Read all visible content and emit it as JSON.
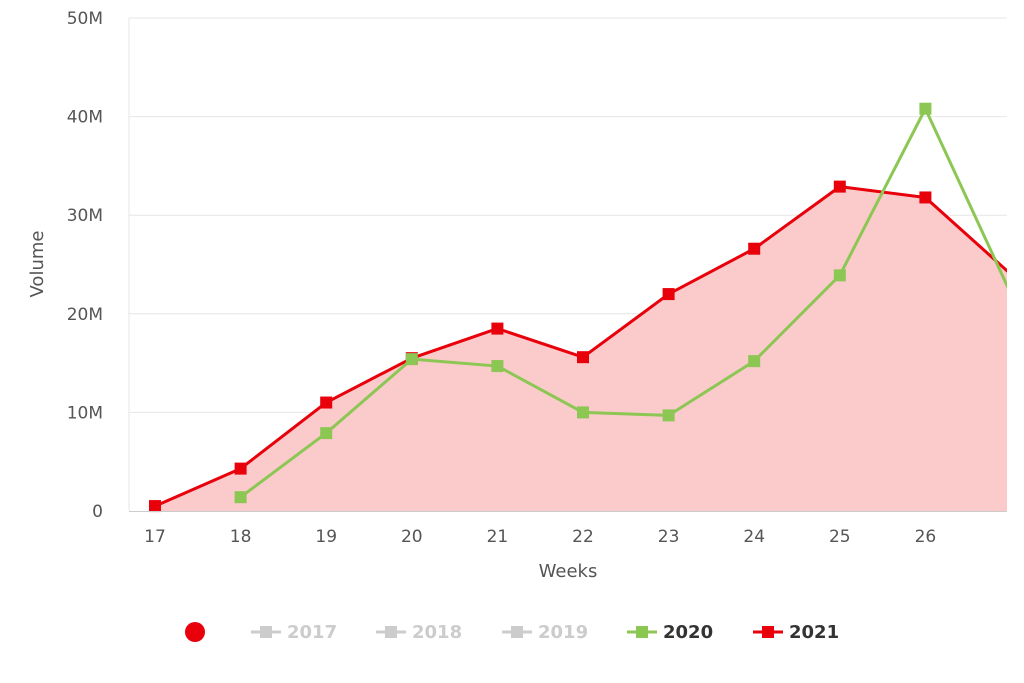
{
  "chart_data": {
    "type": "area",
    "xlabel": "Weeks",
    "ylabel": "Volume",
    "x_categories": [
      "17",
      "18",
      "19",
      "20",
      "21",
      "22",
      "23",
      "24",
      "25",
      "26"
    ],
    "y_ticks": [
      {
        "value": 0,
        "label": "0"
      },
      {
        "value": 10000000,
        "label": "10M"
      },
      {
        "value": 20000000,
        "label": "20M"
      },
      {
        "value": 30000000,
        "label": "30M"
      },
      {
        "value": 40000000,
        "label": "40M"
      },
      {
        "value": 50000000,
        "label": "50M"
      }
    ],
    "ylim": [
      0,
      50000000
    ],
    "grid": true,
    "legend_position": "bottom",
    "series": [
      {
        "name": "2017",
        "visible": false,
        "color": "#cccccc",
        "x": [],
        "y": []
      },
      {
        "name": "2018",
        "visible": false,
        "color": "#cccccc",
        "x": [],
        "y": []
      },
      {
        "name": "2019",
        "visible": false,
        "color": "#cccccc",
        "x": [],
        "y": []
      },
      {
        "name": "2020",
        "visible": true,
        "color": "#8cc653",
        "style": "line",
        "x": [
          18,
          19,
          20,
          21,
          22,
          23,
          24,
          25,
          26,
          27
        ],
        "y": [
          1400000,
          7900000,
          15400000,
          14700000,
          10000000,
          9700000,
          15200000,
          23900000,
          40800000,
          22000000
        ]
      },
      {
        "name": "2021",
        "visible": true,
        "color": "#e8000b",
        "fill": "#fbcbcb",
        "style": "area",
        "x": [
          17,
          18,
          19,
          20,
          21,
          22,
          23,
          24,
          25,
          26,
          27
        ],
        "y": [
          500000,
          4300000,
          11000000,
          15500000,
          18500000,
          15600000,
          22000000,
          26600000,
          32900000,
          31800000,
          24000000
        ]
      }
    ],
    "legend_marker_color": "#e8000b"
  }
}
